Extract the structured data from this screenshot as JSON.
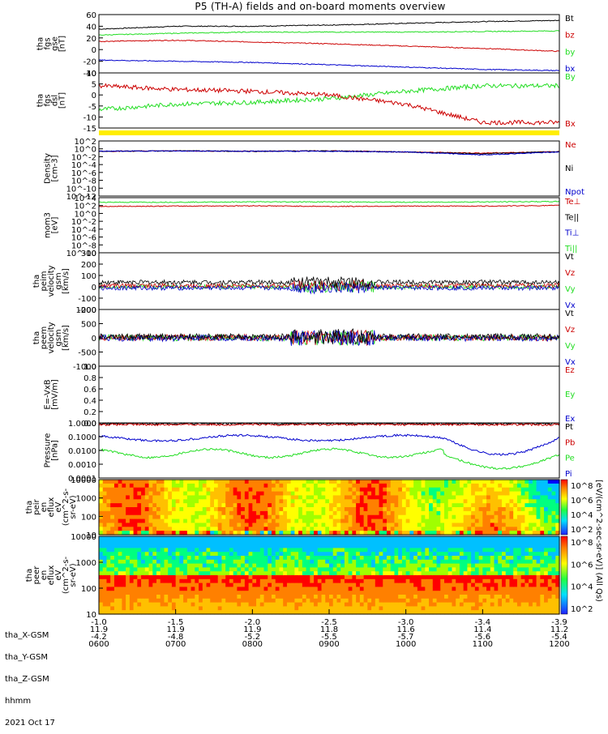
{
  "title": "P5 (TH-A) fields and on-board moments overview",
  "footer": {
    "row_labels": [
      "tha_X-GSM",
      "tha_Y-GSM",
      "tha_Z-GSM",
      "hhmm",
      "2021 Oct 17"
    ],
    "x_gsm": [
      "-1.0",
      "-1.5",
      "-2.0",
      "-2.5",
      "-3.0",
      "-3.4",
      "-3.9"
    ],
    "y_gsm": [
      "11.9",
      "11.9",
      "11.9",
      "11.8",
      "11.6",
      "11.4",
      "11.2"
    ],
    "z_gsm": [
      "-4.2",
      "-4.8",
      "-5.2",
      "-5.5",
      "-5.7",
      "-5.6",
      "-5.4"
    ],
    "hhmm": [
      "0600",
      "0700",
      "0800",
      "0900",
      "1000",
      "1100",
      "1200"
    ]
  },
  "colorbar_label": "[eV/(cm^2-sec-sr-eV)] (All Qs)",
  "colorbar_ticks": [
    "10^8",
    "10^6",
    "10^4",
    "10^2"
  ],
  "colors": {
    "black": "#000000",
    "red": "#cc0000",
    "green": "#22dd22",
    "blue": "#0000cc",
    "yellow": "#ffee00"
  },
  "chart_data": [
    {
      "type": "line",
      "id": "fgs",
      "ylabel": [
        "tha",
        "fgs",
        "gse",
        "[nT]"
      ],
      "ylim": [
        -40,
        60
      ],
      "yticks": [
        "60",
        "40",
        "20",
        "0",
        "-20",
        "-40"
      ],
      "legend": [
        "Bt",
        "bz",
        "by",
        "bx"
      ],
      "series": [
        {
          "name": "Bt",
          "color": "black",
          "x": [
            6,
            7,
            8,
            9,
            10,
            11,
            12
          ],
          "y": [
            35,
            40,
            40,
            42,
            45,
            48,
            50
          ]
        },
        {
          "name": "bz",
          "color": "red",
          "x": [
            6,
            7,
            8,
            9,
            10,
            11,
            12
          ],
          "y": [
            14,
            16,
            13,
            10,
            6,
            2,
            -3
          ]
        },
        {
          "name": "by",
          "color": "green",
          "x": [
            6,
            7,
            8,
            9,
            10,
            11,
            12
          ],
          "y": [
            25,
            28,
            30,
            30,
            30,
            31,
            32
          ]
        },
        {
          "name": "bx",
          "color": "blue",
          "x": [
            6,
            7,
            8,
            9,
            10,
            11,
            12
          ],
          "y": [
            -18,
            -20,
            -22,
            -26,
            -30,
            -34,
            -36
          ]
        }
      ]
    },
    {
      "type": "line",
      "id": "fgs_dsl",
      "ylabel": [
        "tha",
        "fgs",
        "dsl",
        "[nT]"
      ],
      "ylim": [
        -18,
        12
      ],
      "yticks": [
        "10",
        "5",
        "0",
        "-5",
        "-10",
        "-15"
      ],
      "legend": [
        "By",
        "Bx"
      ],
      "series": [
        {
          "name": "By",
          "color": "green",
          "x": [
            6,
            7,
            8,
            9,
            10,
            11,
            12
          ],
          "y": [
            -8,
            -5,
            -4,
            -2,
            2,
            5,
            5
          ]
        },
        {
          "name": "Bx",
          "color": "red",
          "x": [
            6,
            7,
            8,
            9,
            10,
            11,
            12
          ],
          "y": [
            5,
            3,
            2,
            0,
            -5,
            -15,
            -15
          ]
        }
      ]
    },
    {
      "type": "line",
      "id": "density",
      "ylabel": [
        "Density",
        "[cm-3]"
      ],
      "log": true,
      "ylim": [
        -12,
        3
      ],
      "yticks": [
        "10^2",
        "10^0",
        "10^-2",
        "10^-4",
        "10^-6",
        "10^-8",
        "10^-10",
        "10^-12"
      ],
      "legend": [
        "Ne",
        "Ni",
        "Npot"
      ],
      "series": [
        {
          "name": "Ne",
          "color": "red",
          "x": [
            6,
            7,
            8,
            9,
            10,
            11,
            12
          ],
          "y": [
            0.2,
            0.3,
            0.2,
            0.3,
            0,
            -0.3,
            0.1
          ]
        },
        {
          "name": "Ni",
          "color": "black",
          "x": [
            6,
            7,
            8,
            9,
            10,
            11,
            12
          ],
          "y": [
            0.2,
            0.3,
            0.2,
            0.3,
            0,
            -0.5,
            0.1
          ]
        },
        {
          "name": "Npot",
          "color": "blue",
          "x": [
            6,
            7,
            8,
            9,
            10,
            11,
            12
          ],
          "y": [
            0.2,
            0.3,
            0.2,
            0.2,
            0,
            -0.8,
            0
          ]
        }
      ]
    },
    {
      "type": "line",
      "id": "temp",
      "ylabel": [
        "mom3",
        "[eV]"
      ],
      "log": true,
      "ylim": [
        -12,
        5
      ],
      "yticks": [
        "10^4",
        "10^2",
        "10^0",
        "10^-2",
        "10^-4",
        "10^-6",
        "10^-8",
        "10^-10"
      ],
      "legend": [
        "Te⊥",
        "Te||",
        "Ti⊥",
        "Ti||"
      ],
      "series": [
        {
          "name": "Ti",
          "color": "green",
          "x": [
            6,
            7,
            8,
            9,
            10,
            11,
            12
          ],
          "y": [
            3.6,
            3.6,
            3.7,
            3.7,
            3.6,
            3.7,
            3.8
          ]
        },
        {
          "name": "Te",
          "color": "red",
          "x": [
            6,
            7,
            8,
            9,
            10,
            11,
            12
          ],
          "y": [
            2.3,
            2.4,
            2.5,
            2.3,
            2.4,
            2.4,
            2.6
          ]
        }
      ]
    },
    {
      "type": "line",
      "id": "peim",
      "ylabel": [
        "tha",
        "peim",
        "velocity",
        "gsm",
        "[km/s]"
      ],
      "ylim": [
        -200,
        300
      ],
      "yticks": [
        "300",
        "200",
        "100",
        "0",
        "-100",
        "-200"
      ],
      "legend": [
        "Vt",
        "Vz",
        "Vy",
        "Vx"
      ]
    },
    {
      "type": "line",
      "id": "peem",
      "ylabel": [
        "tha",
        "peem",
        "velocity",
        "gsm",
        "[km/s]"
      ],
      "ylim": [
        -1000,
        1000
      ],
      "yticks": [
        "1000",
        "500",
        "0",
        "-500",
        "-1000"
      ],
      "legend": [
        "Vt",
        "Vz",
        "Vy",
        "Vx"
      ]
    },
    {
      "type": "line",
      "id": "efield",
      "ylabel": [
        "E=-VxB",
        "[mV/m]"
      ],
      "ylim": [
        0,
        1
      ],
      "yticks": [
        "1.0",
        "0.8",
        "0.6",
        "0.4",
        "0.2",
        "0.0"
      ],
      "legend": [
        "Ez",
        "Ey",
        "Ex"
      ]
    },
    {
      "type": "line",
      "id": "pressure",
      "ylabel": [
        "Pressure",
        "[nPa]"
      ],
      "log": true,
      "ylim": [
        -4,
        0
      ],
      "yticks": [
        "1.0000",
        "0.1000",
        "0.0100",
        "0.0010",
        "0.0001"
      ],
      "legend": [
        "Pt",
        "Pb",
        "Pe",
        "Pi"
      ]
    },
    {
      "type": "heatmap",
      "id": "peir",
      "ylabel": [
        "tha",
        "peir",
        "en",
        "eflux",
        "eV",
        "(cm^2-s-",
        "sr-eV)"
      ],
      "yticks": [
        "10000",
        "1000",
        "100",
        "10"
      ]
    },
    {
      "type": "heatmap",
      "id": "peer",
      "ylabel": [
        "tha",
        "peer",
        "en",
        "eflux",
        "eV",
        "(cm^2-s-",
        "sr-eV)"
      ],
      "yticks": [
        "10000",
        "1000",
        "100",
        "10"
      ]
    }
  ]
}
